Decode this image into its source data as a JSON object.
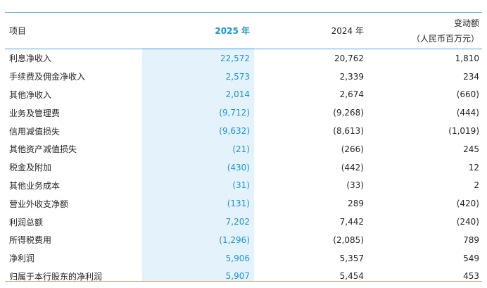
{
  "header": {
    "item": "项目",
    "y2025": "2025 年",
    "y2024": "2024 年",
    "change": "变动额",
    "unit": "（人民币百万元）"
  },
  "rows": [
    {
      "label": "利息净收入",
      "y2025": "22,572",
      "y2024": "20,762",
      "change": "1,810"
    },
    {
      "label": "手续费及佣金净收入",
      "y2025": "2,573",
      "y2024": "2,339",
      "change": "234"
    },
    {
      "label": "其他净收入",
      "y2025": "2,014",
      "y2024": "2,674",
      "change": "(660)"
    },
    {
      "label": "业务及管理费",
      "y2025": "(9,712)",
      "y2024": "(9,268)",
      "change": "(444)"
    },
    {
      "label": "信用减值损失",
      "y2025": "(9,632)",
      "y2024": "(8,613)",
      "change": "(1,019)"
    },
    {
      "label": "其他资产减值损失",
      "y2025": "(21)",
      "y2024": "(266)",
      "change": "245"
    },
    {
      "label": "税金及附加",
      "y2025": "(430)",
      "y2024": "(442)",
      "change": "12"
    },
    {
      "label": "其他业务成本",
      "y2025": "(31)",
      "y2024": "(33)",
      "change": "2"
    },
    {
      "label": "营业外收支净额",
      "y2025": "(131)",
      "y2024": "289",
      "change": "(420)"
    },
    {
      "label": "利润总额",
      "y2025": "7,202",
      "y2024": "7,442",
      "change": "(240)"
    },
    {
      "label": "所得税费用",
      "y2025": "(1,296)",
      "y2024": "(2,085)",
      "change": "789"
    },
    {
      "label": "净利润",
      "y2025": "5,906",
      "y2024": "5,357",
      "change": "549"
    },
    {
      "label": "归属于本行股东的净利润",
      "y2025": "5,907",
      "y2024": "5,454",
      "change": "453"
    }
  ]
}
